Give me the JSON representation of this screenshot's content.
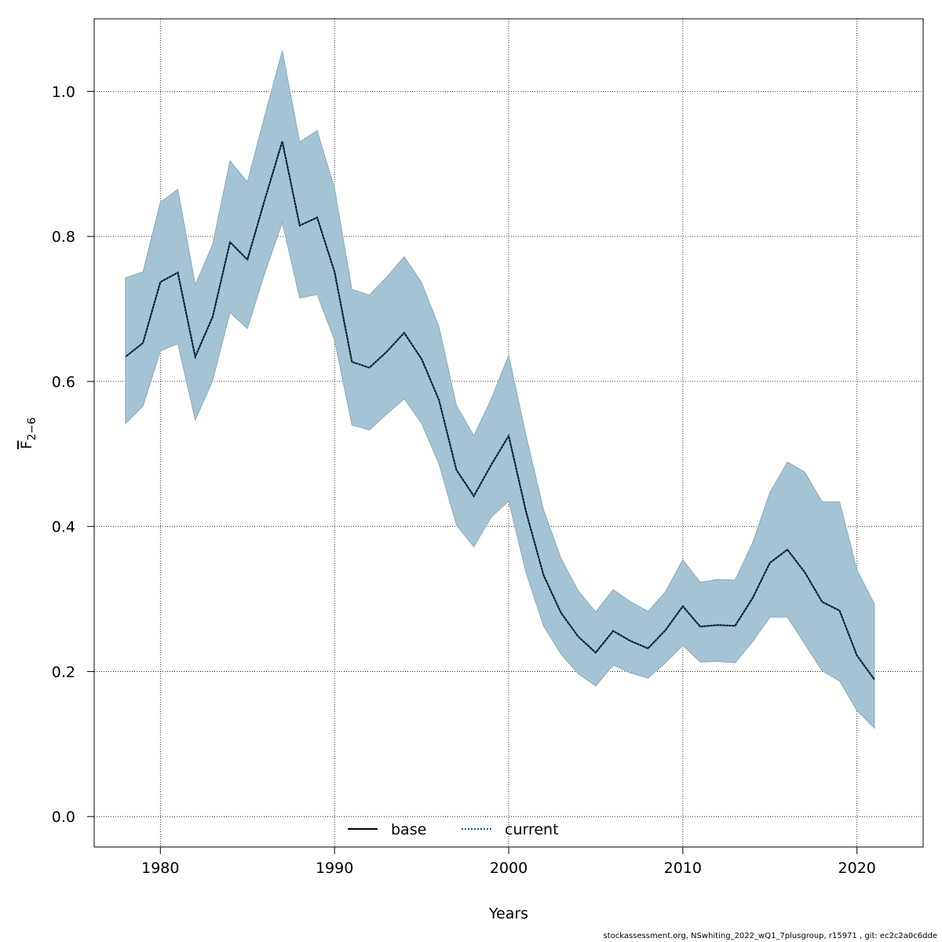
{
  "chart_data": {
    "type": "line",
    "title": "",
    "xlabel": "Years",
    "ylabel": "F",
    "ylabel_subscript": "2−6",
    "xlim": [
      1976.2,
      2023.8
    ],
    "ylim": [
      -0.042,
      1.1
    ],
    "x_ticks": [
      1980,
      1990,
      2000,
      2010,
      2020
    ],
    "y_ticks": [
      0.0,
      0.2,
      0.4,
      0.6,
      0.8,
      1.0
    ],
    "x_tick_labels": [
      "1980",
      "1990",
      "2000",
      "2010",
      "2020"
    ],
    "y_tick_labels": [
      "0.0",
      "0.2",
      "0.4",
      "0.6",
      "0.8",
      "1.0"
    ],
    "grid": true,
    "legend_position": "bottom-center",
    "x": [
      1978,
      1979,
      1980,
      1981,
      1982,
      1983,
      1984,
      1985,
      1986,
      1987,
      1988,
      1989,
      1990,
      1991,
      1992,
      1993,
      1994,
      1995,
      1996,
      1997,
      1998,
      1999,
      2000,
      2001,
      2002,
      2003,
      2004,
      2005,
      2006,
      2007,
      2008,
      2009,
      2010,
      2011,
      2012,
      2013,
      2014,
      2015,
      2016,
      2017,
      2018,
      2019,
      2020,
      2021
    ],
    "band": {
      "color": "#a4c4d5",
      "upper": [
        0.743,
        0.751,
        0.847,
        0.865,
        0.733,
        0.789,
        0.904,
        0.875,
        0.967,
        1.056,
        0.93,
        0.946,
        0.866,
        0.727,
        0.719,
        0.744,
        0.772,
        0.736,
        0.675,
        0.567,
        0.525,
        0.576,
        0.636,
        0.525,
        0.423,
        0.356,
        0.311,
        0.282,
        0.313,
        0.296,
        0.283,
        0.31,
        0.354,
        0.323,
        0.327,
        0.326,
        0.377,
        0.447,
        0.489,
        0.475,
        0.434,
        0.434,
        0.34,
        0.293
      ],
      "lower": [
        0.542,
        0.566,
        0.642,
        0.652,
        0.547,
        0.601,
        0.695,
        0.673,
        0.75,
        0.819,
        0.715,
        0.72,
        0.657,
        0.54,
        0.533,
        0.555,
        0.576,
        0.542,
        0.486,
        0.402,
        0.372,
        0.413,
        0.435,
        0.336,
        0.263,
        0.224,
        0.197,
        0.18,
        0.209,
        0.198,
        0.191,
        0.212,
        0.236,
        0.213,
        0.214,
        0.212,
        0.241,
        0.275,
        0.275,
        0.238,
        0.201,
        0.187,
        0.146,
        0.122
      ]
    },
    "series": [
      {
        "name": "base",
        "color": "#000000",
        "line_style": "solid",
        "values": [
          0.634,
          0.653,
          0.737,
          0.75,
          0.634,
          0.689,
          0.792,
          0.768,
          0.851,
          0.931,
          0.815,
          0.826,
          0.751,
          0.627,
          0.619,
          0.641,
          0.667,
          0.631,
          0.574,
          0.478,
          0.442,
          0.485,
          0.525,
          0.42,
          0.333,
          0.281,
          0.248,
          0.226,
          0.256,
          0.242,
          0.232,
          0.257,
          0.29,
          0.262,
          0.264,
          0.263,
          0.301,
          0.35,
          0.368,
          0.337,
          0.296,
          0.284,
          0.222,
          0.189
        ]
      },
      {
        "name": "current",
        "color": "#1a5e8c",
        "line_style": "dotted",
        "values": [
          0.634,
          0.653,
          0.737,
          0.75,
          0.634,
          0.689,
          0.792,
          0.768,
          0.851,
          0.931,
          0.815,
          0.826,
          0.751,
          0.627,
          0.619,
          0.641,
          0.667,
          0.631,
          0.574,
          0.478,
          0.442,
          0.485,
          0.525,
          0.42,
          0.333,
          0.281,
          0.248,
          0.226,
          0.256,
          0.242,
          0.232,
          0.257,
          0.29,
          0.262,
          0.264,
          0.263,
          0.301,
          0.35,
          0.368,
          0.337,
          0.296,
          0.284,
          0.222,
          0.189
        ]
      }
    ]
  },
  "footer_text": "stockassessment.org, NSwhiting_2022_wQ1_7plusgroup, r15971 , git: ec2c2a0c6dde"
}
